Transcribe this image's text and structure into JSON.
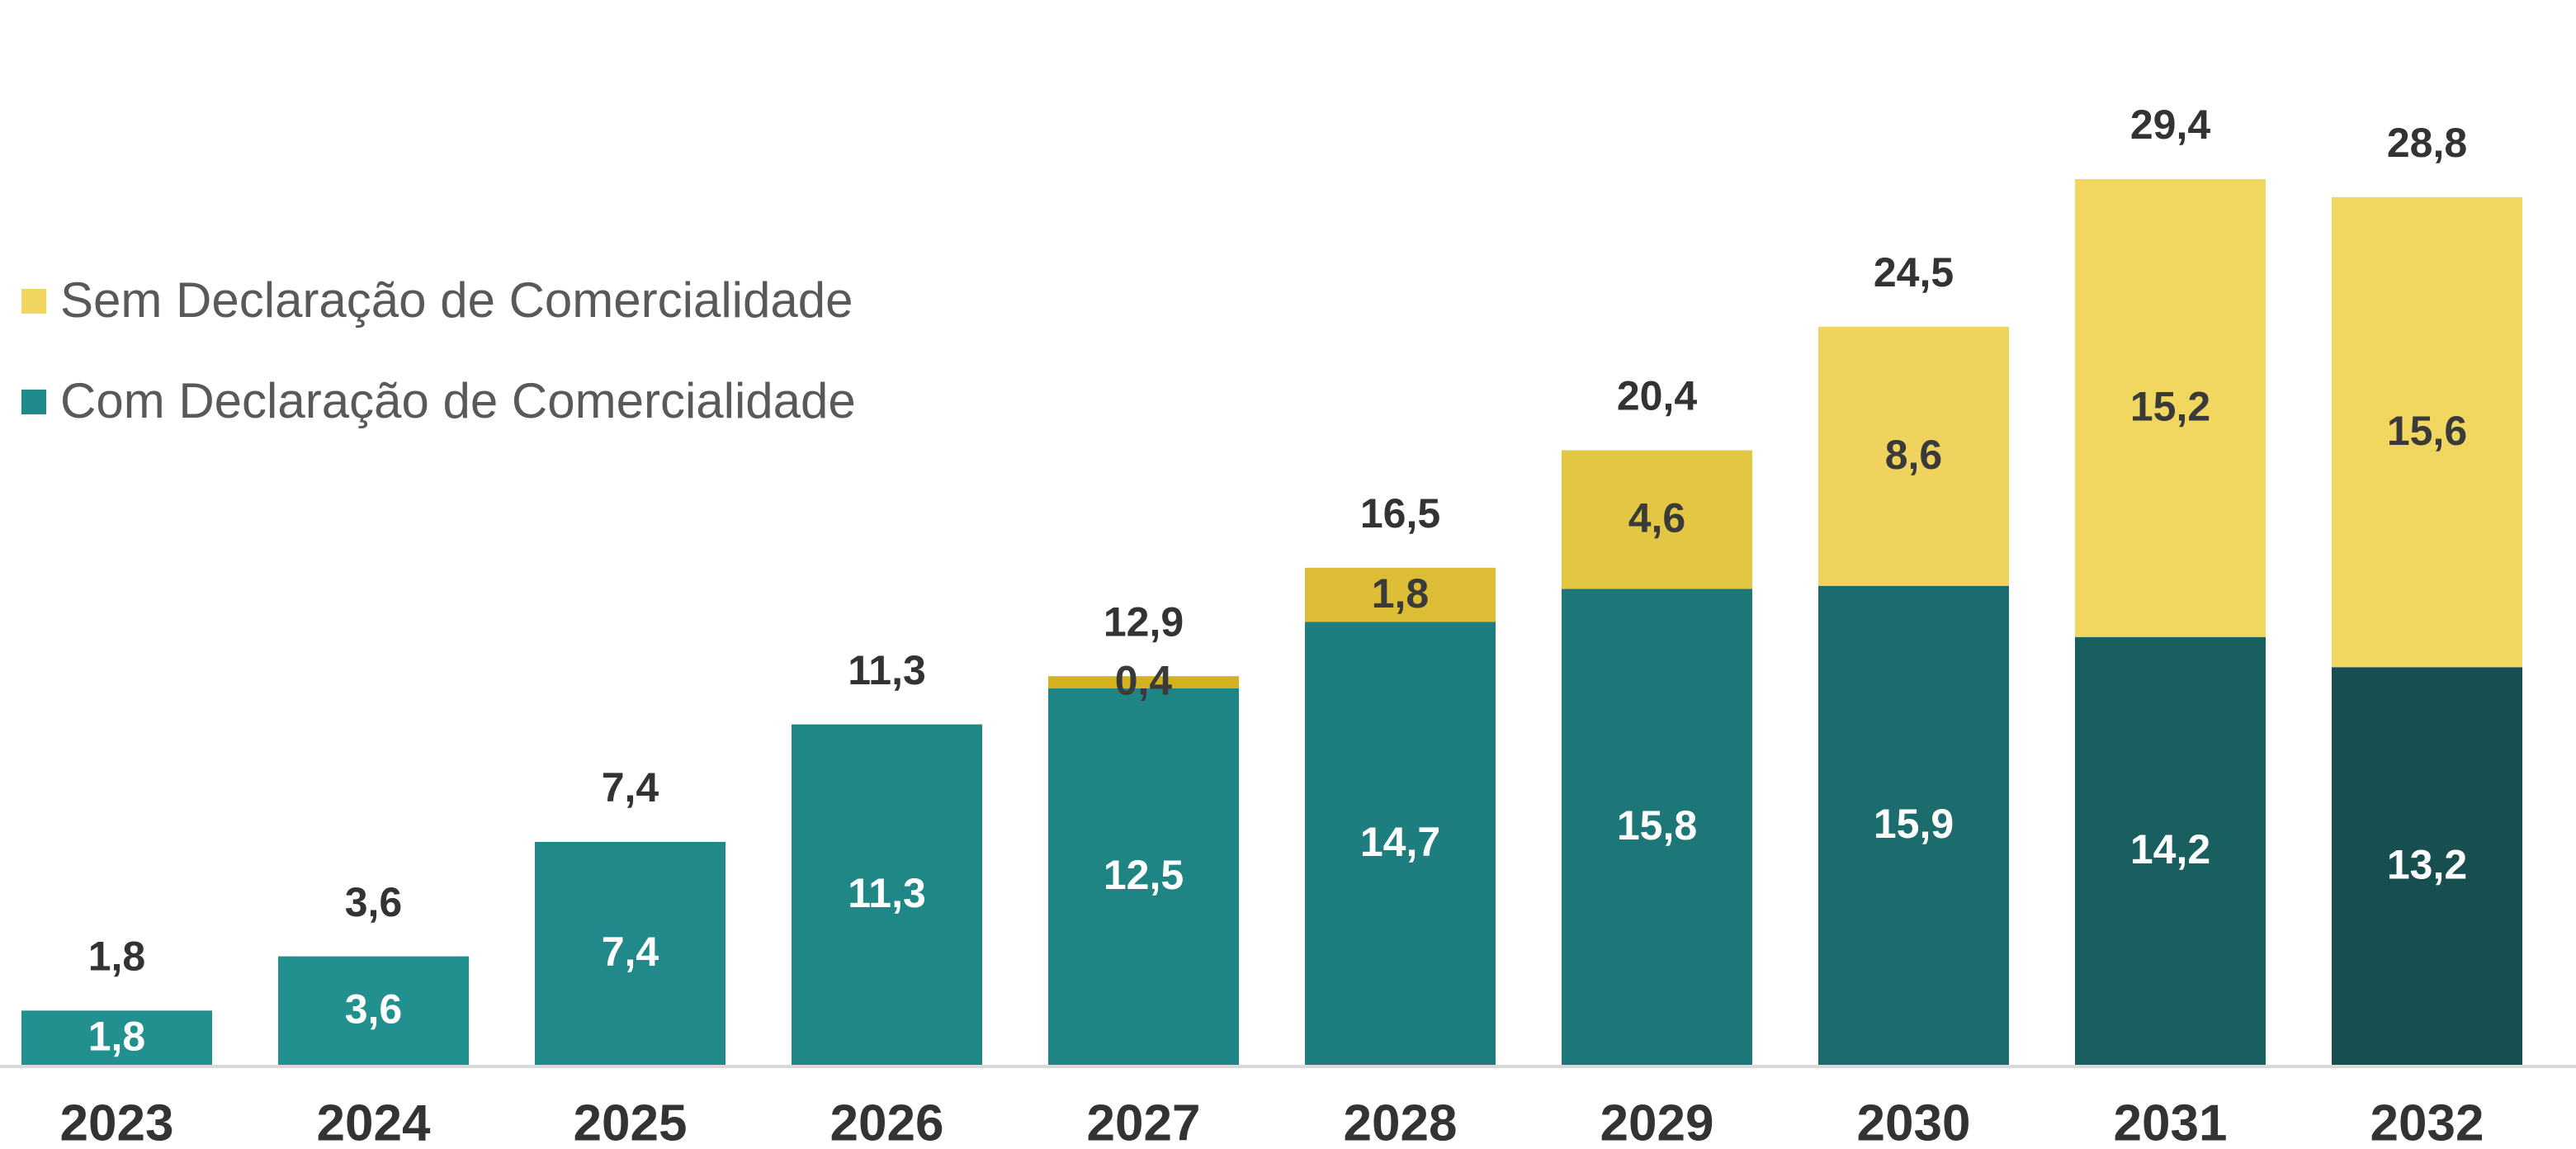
{
  "chart_data": {
    "type": "stacked_bar",
    "categories": [
      "2023",
      "2024",
      "2025",
      "2026",
      "2027",
      "2028",
      "2029",
      "2030",
      "2031",
      "2032"
    ],
    "series": [
      {
        "name": "Com Declaração de Comercialidade",
        "color": "#1f8a8a",
        "colors": [
          "#22908f",
          "#22908f",
          "#21898a",
          "#208787",
          "#1f8484",
          "#1e7d7e",
          "#1d7677",
          "#1b6c6d",
          "#195f60",
          "#174f50"
        ],
        "values": [
          1.8,
          3.6,
          7.4,
          11.3,
          12.5,
          14.7,
          15.8,
          15.9,
          14.2,
          13.2
        ],
        "value_labels": [
          "1,8",
          "3,6",
          "7,4",
          "11,3",
          "12,5",
          "14,7",
          "15,8",
          "15,9",
          "14,2",
          "13,2"
        ]
      },
      {
        "name": "Sem Declaração de Comercialidade",
        "color": "#f0d660",
        "colors": [
          null,
          null,
          null,
          null,
          "#d4b11f",
          "#dcbd35",
          "#e3c644",
          "#efd35e",
          "#f1d660",
          "#f1d660"
        ],
        "values": [
          null,
          null,
          null,
          null,
          0.4,
          1.8,
          4.6,
          8.6,
          15.2,
          15.6
        ],
        "value_labels": [
          null,
          null,
          null,
          null,
          "0,4",
          "1,8",
          "4,6",
          "8,6",
          "15,2",
          "15,6"
        ]
      }
    ],
    "totals": [
      1.8,
      3.6,
      7.4,
      11.3,
      12.9,
      16.5,
      20.4,
      24.5,
      29.4,
      28.8
    ],
    "total_labels": [
      "1,8",
      "3,6",
      "7,4",
      "11,3",
      "12,9",
      "16,5",
      "20,4",
      "24,5",
      "29,4",
      "28,8"
    ],
    "legend": "upper left"
  }
}
